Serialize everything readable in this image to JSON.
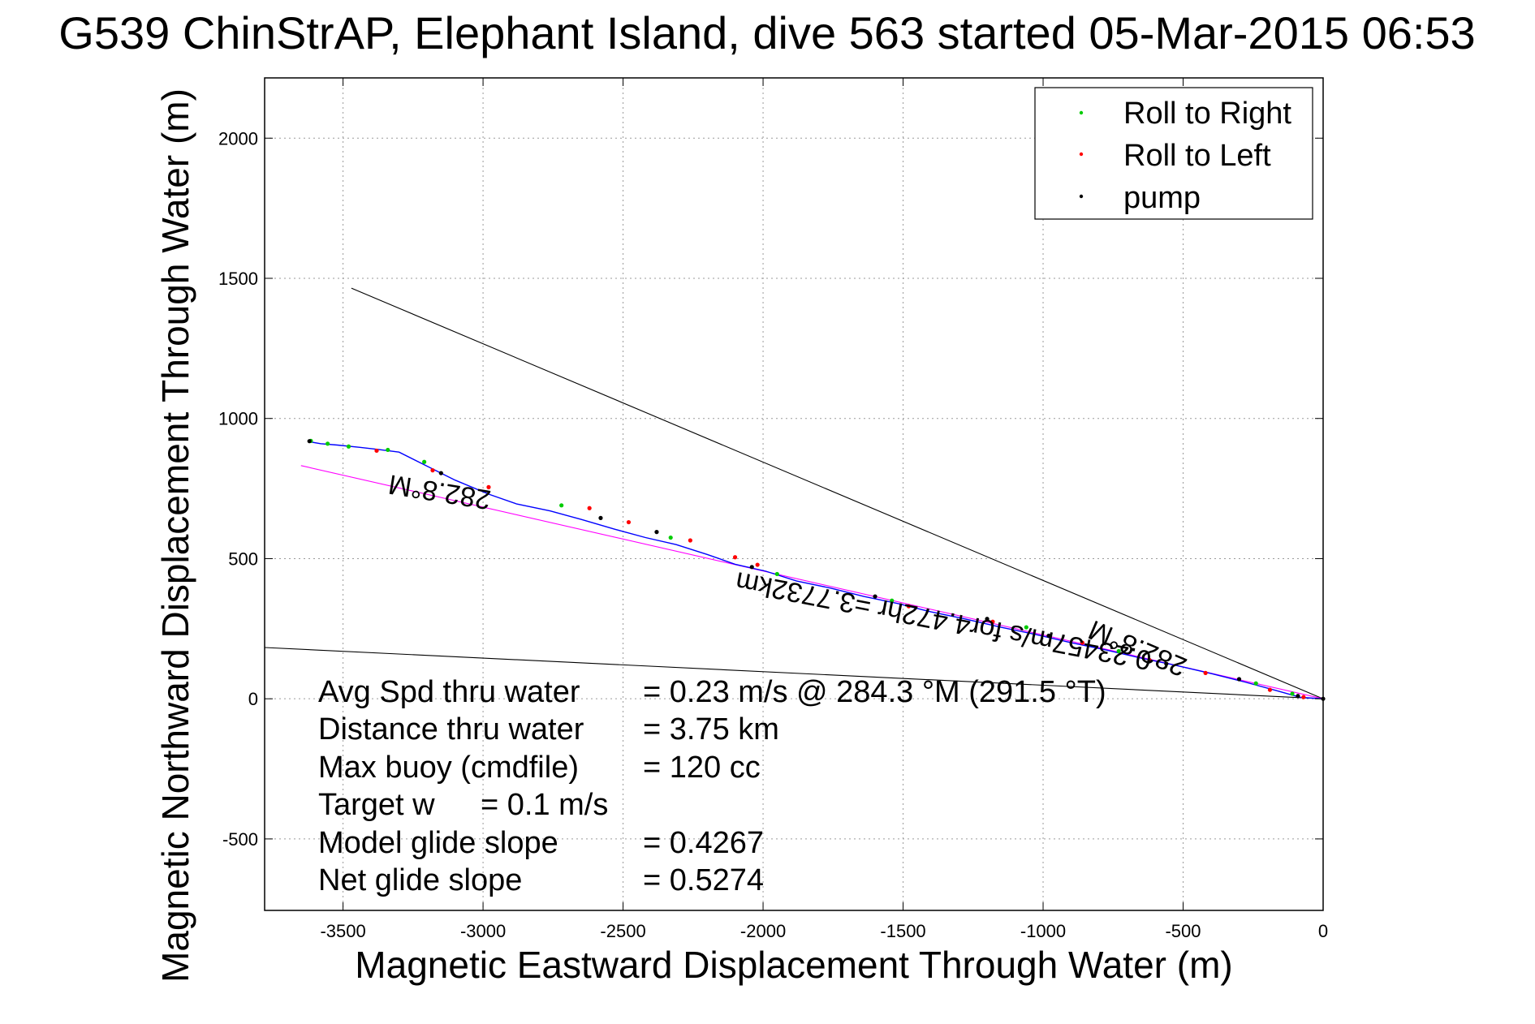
{
  "chart_data": {
    "type": "line",
    "title": "G539 ChinStrAP, Elephant Island, dive 563 started 05-Mar-2015 06:53",
    "xlabel": "Magnetic Eastward Displacement Through Water (m)",
    "ylabel": "Magnetic Northward Displacement Through Water (m)",
    "xlim": [
      -3780,
      0
    ],
    "ylim": [
      -755,
      2215
    ],
    "grid": true,
    "xticks": [
      -3500,
      -3000,
      -2500,
      -2000,
      -1500,
      -1000,
      -500,
      0
    ],
    "yticks": [
      -500,
      0,
      500,
      1000,
      1500,
      2000
    ],
    "xtick_labels": [
      "-3500",
      "-3000",
      "-2500",
      "-2000",
      "-1500",
      "-1000",
      "-500",
      "0"
    ],
    "ytick_labels": [
      "-500",
      "0",
      "500",
      "1000",
      "1500",
      "2000"
    ],
    "legend": {
      "placement": "top-right",
      "entries": [
        {
          "label": "Roll to Right",
          "color": "#00cc00"
        },
        {
          "label": "Roll to Left",
          "color": "#ff0000"
        },
        {
          "label": "pump",
          "color": "#000000"
        }
      ]
    },
    "series": [
      {
        "kind": "track",
        "color": "#0000ff",
        "x": [
          -3625,
          -3580,
          -3520,
          -3440,
          -3380,
          -3300,
          -3200,
          -3100,
          -2980,
          -2880,
          -2760,
          -2650,
          -2530,
          -2420,
          -2310,
          -2200,
          -2100,
          -1990,
          -1880,
          -1760,
          -1640,
          -1520,
          -1400,
          -1280,
          -1150,
          -1030,
          -900,
          -780,
          -650,
          -530,
          -400,
          -280,
          -170,
          -80,
          0
        ],
        "y": [
          918,
          910,
          905,
          897,
          890,
          880,
          830,
          780,
          730,
          695,
          670,
          640,
          605,
          575,
          550,
          515,
          480,
          455,
          420,
          395,
          365,
          340,
          310,
          285,
          255,
          230,
          200,
          175,
          145,
          120,
          90,
          60,
          30,
          5,
          0
        ]
      },
      {
        "kind": "fit-line",
        "color": "#ff00ff",
        "x": [
          -3650,
          0
        ],
        "y": [
          832,
          0
        ]
      },
      {
        "kind": "reference-line",
        "color": "#000000",
        "x": [
          -3470,
          0
        ],
        "y": [
          1465,
          0
        ]
      },
      {
        "kind": "reference-line",
        "color": "#000000",
        "x": [
          -3780,
          0
        ],
        "y": [
          183,
          0
        ]
      },
      {
        "name": "Roll to Right",
        "kind": "markers",
        "color": "#00cc00",
        "x": [
          -3615,
          -3555,
          -3480,
          -3340,
          -3210,
          -2720,
          -2330,
          -1950,
          -1540,
          -1060,
          -730,
          -240,
          -110
        ],
        "y": [
          920,
          910,
          900,
          888,
          845,
          690,
          575,
          445,
          350,
          255,
          170,
          55,
          18
        ]
      },
      {
        "name": "Roll to Left",
        "kind": "markers",
        "color": "#ff0000",
        "x": [
          -3380,
          -3180,
          -2980,
          -2620,
          -2480,
          -2260,
          -2100,
          -2020,
          -1480,
          -1180,
          -860,
          -620,
          -420,
          -190,
          -70
        ],
        "y": [
          885,
          815,
          755,
          680,
          630,
          565,
          505,
          478,
          330,
          275,
          200,
          138,
          92,
          32,
          6
        ]
      },
      {
        "name": "pump",
        "kind": "markers",
        "color": "#000000",
        "x": [
          -3620,
          -3150,
          -2580,
          -2380,
          -2040,
          -1600,
          -1200,
          -980,
          -560,
          -300,
          -90,
          0
        ],
        "y": [
          919,
          805,
          645,
          595,
          470,
          365,
          285,
          225,
          125,
          70,
          10,
          0
        ]
      }
    ],
    "annotations": [
      {
        "text": "282.8°M",
        "x": -3150,
        "y": 770,
        "rotation_deg": 189.1
      },
      {
        "text": "282.8°M",
        "x": -650,
        "y": 210,
        "rotation_deg": 202.9
      },
      {
        "text": "0.23457m/s for4.472hr =3.7732km",
        "x": -1350,
        "y": 310,
        "rotation_deg": 190.9
      }
    ],
    "stats": [
      {
        "label": "Avg Spd thru water",
        "value": "=  0.23 m/s @ 284.3 °M (291.5 °T)"
      },
      {
        "label": "Distance thru water",
        "value": "=  3.75 km"
      },
      {
        "label": "Max buoy (cmdfile)",
        "value": "= 120 cc"
      },
      {
        "label": "Target w",
        "value": "= 0.1 m/s"
      },
      {
        "label": "Model glide slope",
        "value": "= 0.4267"
      },
      {
        "label": "Net glide slope",
        "value": "= 0.5274"
      }
    ]
  }
}
